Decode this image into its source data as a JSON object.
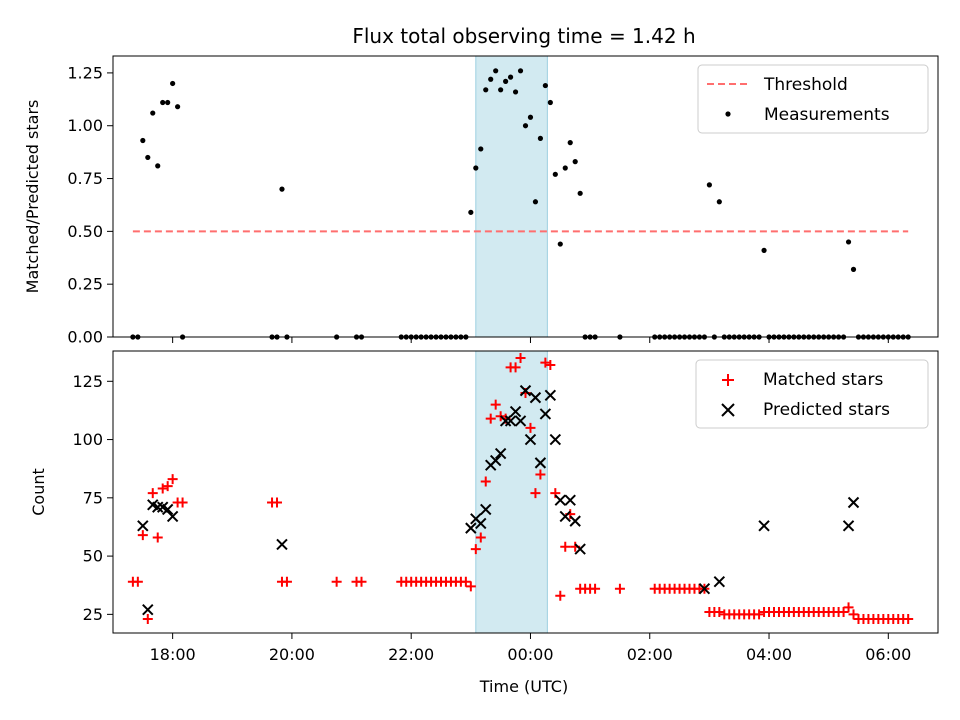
{
  "title": "Flux total observing time = 1.42 h",
  "x_axis": {
    "label": "Time (UTC)",
    "range": [
      "17:00",
      "06:50"
    ],
    "ticks": [
      "18:00",
      "20:00",
      "22:00",
      "00:00",
      "02:00",
      "04:00",
      "06:00"
    ]
  },
  "highlight": {
    "start": "23:05",
    "end": "00:17",
    "color": "#add8e6"
  },
  "chart_data": [
    {
      "type": "scatter",
      "ylabel": "Matched/Predicted stars",
      "ylim": [
        0,
        1.33
      ],
      "yticks": [
        "0.00",
        "0.25",
        "0.50",
        "0.75",
        "1.00",
        "1.25"
      ],
      "legend_position": "top-right",
      "threshold": {
        "name": "Threshold",
        "value": 0.5,
        "x": [
          "17:20",
          "06:20"
        ],
        "color": "#ff6e6e",
        "style": "dashed"
      },
      "series": [
        {
          "name": "Measurements",
          "marker": "dot",
          "color": "#000000",
          "points": [
            [
              "17:20",
              0
            ],
            [
              "17:25",
              0
            ],
            [
              "17:30",
              0.93
            ],
            [
              "17:35",
              0.85
            ],
            [
              "17:40",
              1.06
            ],
            [
              "17:45",
              0.81
            ],
            [
              "17:50",
              1.11
            ],
            [
              "17:55",
              1.11
            ],
            [
              "18:00",
              1.2
            ],
            [
              "18:05",
              1.09
            ],
            [
              "18:10",
              0
            ],
            [
              "19:40",
              0
            ],
            [
              "19:45",
              0
            ],
            [
              "19:50",
              0.7
            ],
            [
              "19:55",
              0
            ],
            [
              "20:45",
              0
            ],
            [
              "21:05",
              0
            ],
            [
              "21:10",
              0
            ],
            [
              "21:50",
              0
            ],
            [
              "21:55",
              0
            ],
            [
              "22:00",
              0
            ],
            [
              "22:05",
              0
            ],
            [
              "22:10",
              0
            ],
            [
              "22:15",
              0
            ],
            [
              "22:20",
              0
            ],
            [
              "22:25",
              0
            ],
            [
              "22:30",
              0
            ],
            [
              "22:35",
              0
            ],
            [
              "22:40",
              0
            ],
            [
              "22:45",
              0
            ],
            [
              "22:50",
              0
            ],
            [
              "22:55",
              0
            ],
            [
              "23:00",
              0.59
            ],
            [
              "23:05",
              0.8
            ],
            [
              "23:10",
              0.89
            ],
            [
              "23:15",
              1.17
            ],
            [
              "23:20",
              1.22
            ],
            [
              "23:25",
              1.26
            ],
            [
              "23:30",
              1.17
            ],
            [
              "23:35",
              1.21
            ],
            [
              "23:40",
              1.23
            ],
            [
              "23:45",
              1.16
            ],
            [
              "23:50",
              1.26
            ],
            [
              "23:55",
              1.0
            ],
            [
              "00:00",
              1.04
            ],
            [
              "00:05",
              0.64
            ],
            [
              "00:10",
              0.94
            ],
            [
              "00:15",
              1.19
            ],
            [
              "00:20",
              1.11
            ],
            [
              "00:25",
              0.77
            ],
            [
              "00:30",
              0.44
            ],
            [
              "00:35",
              0.8
            ],
            [
              "00:40",
              0.92
            ],
            [
              "00:45",
              0.83
            ],
            [
              "00:50",
              0.68
            ],
            [
              "00:55",
              0
            ],
            [
              "01:00",
              0
            ],
            [
              "01:05",
              0
            ],
            [
              "01:30",
              0
            ],
            [
              "02:05",
              0
            ],
            [
              "02:10",
              0
            ],
            [
              "02:15",
              0
            ],
            [
              "02:20",
              0
            ],
            [
              "02:25",
              0
            ],
            [
              "02:30",
              0
            ],
            [
              "02:35",
              0
            ],
            [
              "02:40",
              0
            ],
            [
              "02:45",
              0
            ],
            [
              "02:50",
              0
            ],
            [
              "02:55",
              0
            ],
            [
              "03:00",
              0.72
            ],
            [
              "03:05",
              0
            ],
            [
              "03:10",
              0.64
            ],
            [
              "03:15",
              0
            ],
            [
              "03:20",
              0
            ],
            [
              "03:25",
              0
            ],
            [
              "03:30",
              0
            ],
            [
              "03:35",
              0
            ],
            [
              "03:40",
              0
            ],
            [
              "03:45",
              0
            ],
            [
              "03:50",
              0
            ],
            [
              "03:55",
              0.41
            ],
            [
              "04:00",
              0
            ],
            [
              "04:05",
              0
            ],
            [
              "04:10",
              0
            ],
            [
              "04:15",
              0
            ],
            [
              "04:20",
              0
            ],
            [
              "04:25",
              0
            ],
            [
              "04:30",
              0
            ],
            [
              "04:35",
              0
            ],
            [
              "04:40",
              0
            ],
            [
              "04:45",
              0
            ],
            [
              "04:50",
              0
            ],
            [
              "04:55",
              0
            ],
            [
              "05:00",
              0
            ],
            [
              "05:05",
              0
            ],
            [
              "05:10",
              0
            ],
            [
              "05:15",
              0
            ],
            [
              "05:20",
              0.45
            ],
            [
              "05:25",
              0.32
            ],
            [
              "05:30",
              0
            ],
            [
              "05:35",
              0
            ],
            [
              "05:40",
              0
            ],
            [
              "05:45",
              0
            ],
            [
              "05:50",
              0
            ],
            [
              "05:55",
              0
            ],
            [
              "06:00",
              0
            ],
            [
              "06:05",
              0
            ],
            [
              "06:10",
              0
            ],
            [
              "06:15",
              0
            ],
            [
              "06:20",
              0
            ]
          ]
        }
      ]
    },
    {
      "type": "scatter",
      "ylabel": "Count",
      "ylim": [
        17,
        138
      ],
      "yticks": [
        "25",
        "50",
        "75",
        "100",
        "125"
      ],
      "legend_position": "top-right",
      "series": [
        {
          "name": "Matched stars",
          "marker": "plus",
          "color": "#ff0000",
          "points": [
            [
              "17:20",
              39
            ],
            [
              "17:25",
              39
            ],
            [
              "17:30",
              59
            ],
            [
              "17:35",
              23
            ],
            [
              "17:40",
              77
            ],
            [
              "17:45",
              58
            ],
            [
              "17:50",
              79
            ],
            [
              "17:55",
              80
            ],
            [
              "18:00",
              83
            ],
            [
              "18:05",
              73
            ],
            [
              "18:10",
              73
            ],
            [
              "19:40",
              73
            ],
            [
              "19:45",
              73
            ],
            [
              "19:50",
              39
            ],
            [
              "19:55",
              39
            ],
            [
              "20:45",
              39
            ],
            [
              "21:05",
              39
            ],
            [
              "21:10",
              39
            ],
            [
              "21:50",
              39
            ],
            [
              "21:55",
              39
            ],
            [
              "22:00",
              39
            ],
            [
              "22:05",
              39
            ],
            [
              "22:10",
              39
            ],
            [
              "22:15",
              39
            ],
            [
              "22:20",
              39
            ],
            [
              "22:25",
              39
            ],
            [
              "22:30",
              39
            ],
            [
              "22:35",
              39
            ],
            [
              "22:40",
              39
            ],
            [
              "22:45",
              39
            ],
            [
              "22:50",
              39
            ],
            [
              "22:55",
              39
            ],
            [
              "23:00",
              37
            ],
            [
              "23:05",
              53
            ],
            [
              "23:10",
              58
            ],
            [
              "23:15",
              82
            ],
            [
              "23:20",
              109
            ],
            [
              "23:25",
              115
            ],
            [
              "23:30",
              110
            ],
            [
              "23:35",
              109
            ],
            [
              "23:40",
              131
            ],
            [
              "23:45",
              131
            ],
            [
              "23:50",
              135
            ],
            [
              "23:55",
              120
            ],
            [
              "00:00",
              105
            ],
            [
              "00:05",
              77
            ],
            [
              "00:10",
              85
            ],
            [
              "00:15",
              133
            ],
            [
              "00:20",
              132
            ],
            [
              "00:25",
              77
            ],
            [
              "00:30",
              33
            ],
            [
              "00:35",
              54
            ],
            [
              "00:40",
              68
            ],
            [
              "00:45",
              54
            ],
            [
              "00:50",
              36
            ],
            [
              "00:55",
              36
            ],
            [
              "01:00",
              36
            ],
            [
              "01:05",
              36
            ],
            [
              "01:30",
              36
            ],
            [
              "02:05",
              36
            ],
            [
              "02:10",
              36
            ],
            [
              "02:15",
              36
            ],
            [
              "02:20",
              36
            ],
            [
              "02:25",
              36
            ],
            [
              "02:30",
              36
            ],
            [
              "02:35",
              36
            ],
            [
              "02:40",
              36
            ],
            [
              "02:45",
              36
            ],
            [
              "02:50",
              36
            ],
            [
              "02:55",
              36
            ],
            [
              "03:00",
              26
            ],
            [
              "03:05",
              26
            ],
            [
              "03:10",
              26
            ],
            [
              "03:15",
              25
            ],
            [
              "03:20",
              25
            ],
            [
              "03:25",
              25
            ],
            [
              "03:30",
              25
            ],
            [
              "03:35",
              25
            ],
            [
              "03:40",
              25
            ],
            [
              "03:45",
              25
            ],
            [
              "03:50",
              25
            ],
            [
              "03:55",
              26
            ],
            [
              "04:00",
              26
            ],
            [
              "04:05",
              26
            ],
            [
              "04:10",
              26
            ],
            [
              "04:15",
              26
            ],
            [
              "04:20",
              26
            ],
            [
              "04:25",
              26
            ],
            [
              "04:30",
              26
            ],
            [
              "04:35",
              26
            ],
            [
              "04:40",
              26
            ],
            [
              "04:45",
              26
            ],
            [
              "04:50",
              26
            ],
            [
              "04:55",
              26
            ],
            [
              "05:00",
              26
            ],
            [
              "05:05",
              26
            ],
            [
              "05:10",
              26
            ],
            [
              "05:15",
              26
            ],
            [
              "05:20",
              28
            ],
            [
              "05:25",
              25
            ],
            [
              "05:30",
              23
            ],
            [
              "05:35",
              23
            ],
            [
              "05:40",
              23
            ],
            [
              "05:45",
              23
            ],
            [
              "05:50",
              23
            ],
            [
              "05:55",
              23
            ],
            [
              "06:00",
              23
            ],
            [
              "06:05",
              23
            ],
            [
              "06:10",
              23
            ],
            [
              "06:15",
              23
            ],
            [
              "06:20",
              23
            ]
          ]
        },
        {
          "name": "Predicted stars",
          "marker": "cross",
          "color": "#000000",
          "points": [
            [
              "17:30",
              63
            ],
            [
              "17:35",
              27
            ],
            [
              "17:40",
              72
            ],
            [
              "17:45",
              71
            ],
            [
              "17:50",
              71
            ],
            [
              "17:55",
              70
            ],
            [
              "18:00",
              67
            ],
            [
              "19:50",
              55
            ],
            [
              "23:00",
              62
            ],
            [
              "23:05",
              66
            ],
            [
              "23:10",
              64
            ],
            [
              "23:15",
              70
            ],
            [
              "23:20",
              89
            ],
            [
              "23:25",
              91
            ],
            [
              "23:30",
              94
            ],
            [
              "23:35",
              108
            ],
            [
              "23:40",
              108
            ],
            [
              "23:45",
              112
            ],
            [
              "23:50",
              108
            ],
            [
              "23:55",
              121
            ],
            [
              "00:00",
              100
            ],
            [
              "00:05",
              118
            ],
            [
              "00:10",
              90
            ],
            [
              "00:15",
              111
            ],
            [
              "00:20",
              119
            ],
            [
              "00:25",
              100
            ],
            [
              "00:30",
              74
            ],
            [
              "00:35",
              67
            ],
            [
              "00:40",
              74
            ],
            [
              "00:45",
              65
            ],
            [
              "00:50",
              53
            ],
            [
              "02:55",
              36
            ],
            [
              "03:10",
              39
            ],
            [
              "03:55",
              63
            ],
            [
              "05:20",
              63
            ],
            [
              "05:25",
              73
            ]
          ]
        }
      ]
    }
  ]
}
